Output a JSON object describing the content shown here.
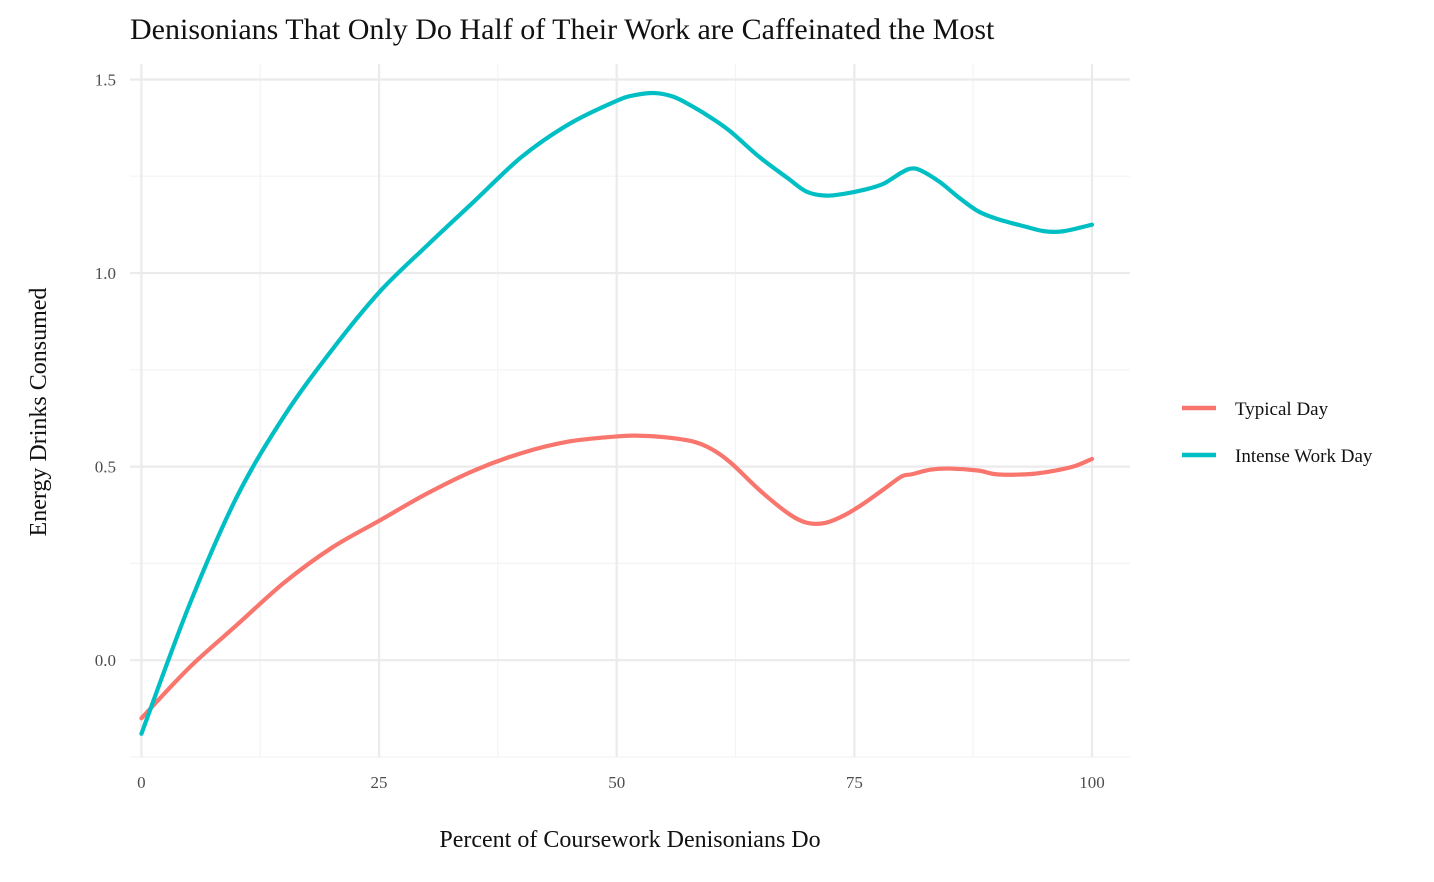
{
  "chart_data": {
    "type": "line",
    "title": "Denisonians That Only Do Half of Their Work are Caffeinated the Most",
    "xlabel": "Percent of Coursework Denisonians Do",
    "ylabel": "Energy Drinks Consumed",
    "xlim": [
      -1.2,
      104
    ],
    "ylim": [
      -0.25,
      1.54
    ],
    "x_ticks": [
      0,
      25,
      50,
      75,
      100
    ],
    "x_tick_labels": [
      "0",
      "25",
      "50",
      "75",
      "100"
    ],
    "y_ticks": [
      0.0,
      0.5,
      1.0,
      1.5
    ],
    "y_tick_labels": [
      "0.0",
      "0.5",
      "1.0",
      "1.5"
    ],
    "grid": true,
    "legend_position": "right",
    "series": [
      {
        "name": "Typical Day",
        "color": "#F8766D",
        "x": [
          0,
          5,
          10,
          15,
          20,
          25,
          30,
          35,
          40,
          45,
          50,
          52,
          55,
          58,
          60,
          62,
          65,
          68,
          70,
          72,
          74,
          76,
          78,
          80,
          81,
          83,
          85,
          88,
          90,
          93,
          95,
          98,
          100
        ],
        "y": [
          -0.15,
          -0.02,
          0.09,
          0.2,
          0.29,
          0.36,
          0.43,
          0.49,
          0.535,
          0.565,
          0.578,
          0.58,
          0.576,
          0.565,
          0.545,
          0.51,
          0.44,
          0.38,
          0.355,
          0.355,
          0.375,
          0.405,
          0.44,
          0.475,
          0.48,
          0.492,
          0.495,
          0.49,
          0.48,
          0.48,
          0.485,
          0.5,
          0.52
        ]
      },
      {
        "name": "Intense Work Day",
        "color": "#00BFC4",
        "x": [
          0,
          5,
          10,
          15,
          20,
          25,
          30,
          35,
          40,
          45,
          50,
          52,
          54,
          56,
          58,
          60,
          62,
          65,
          68,
          70,
          72,
          74,
          76,
          78,
          80,
          81,
          82,
          84,
          86,
          88,
          90,
          93,
          95,
          97,
          100
        ],
        "y": [
          -0.19,
          0.14,
          0.42,
          0.63,
          0.8,
          0.95,
          1.07,
          1.185,
          1.3,
          1.385,
          1.445,
          1.46,
          1.465,
          1.455,
          1.43,
          1.4,
          1.365,
          1.3,
          1.245,
          1.21,
          1.2,
          1.205,
          1.215,
          1.23,
          1.26,
          1.27,
          1.265,
          1.235,
          1.195,
          1.16,
          1.14,
          1.12,
          1.108,
          1.108,
          1.125
        ]
      }
    ]
  }
}
